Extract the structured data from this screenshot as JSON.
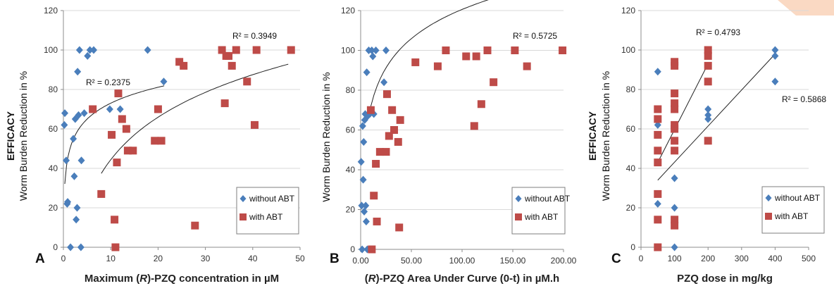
{
  "colors": {
    "without_abt": "#4A7EBB",
    "with_abt": "#BE4B48",
    "grid": "#D9D9D9",
    "axis": "#8C8C8C",
    "trend": "#222222",
    "corner_accent": "#FAD9C3"
  },
  "chart_data": [
    {
      "type": "scatter",
      "panel_label": "A",
      "xlabel": "Maximum (R)-PZQ concentration in µM",
      "ylabel_line1": "EFFICACY",
      "ylabel_line2": "Worm Burden Reduction in %",
      "xlim": [
        0,
        50
      ],
      "ylim": [
        0,
        120
      ],
      "xticks": [
        0,
        10,
        20,
        30,
        40,
        50
      ],
      "yticks": [
        0,
        20,
        40,
        60,
        80,
        100,
        120
      ],
      "xtick_labels": [
        "0",
        "10",
        "20",
        "30",
        "40",
        "50"
      ],
      "ytick_labels": [
        "0",
        "20",
        "40",
        "60",
        "80",
        "100",
        "120"
      ],
      "grid": "horizontal",
      "legend_position": "bottom-right",
      "series": [
        {
          "name": "without ABT",
          "marker": "diamond",
          "points": [
            [
              0.2,
              62
            ],
            [
              0.3,
              68
            ],
            [
              0.6,
              44
            ],
            [
              0.8,
              22
            ],
            [
              0.9,
              23
            ],
            [
              1.5,
              0
            ],
            [
              2.1,
              55
            ],
            [
              2.3,
              36
            ],
            [
              2.5,
              65
            ],
            [
              2.7,
              14
            ],
            [
              2.9,
              20
            ],
            [
              3.0,
              89
            ],
            [
              3.2,
              67
            ],
            [
              3.4,
              100
            ],
            [
              3.7,
              0
            ],
            [
              3.8,
              44
            ],
            [
              4.4,
              68
            ],
            [
              5.1,
              97
            ],
            [
              5.6,
              100
            ],
            [
              6.4,
              100
            ],
            [
              9.8,
              70
            ],
            [
              12.0,
              70
            ],
            [
              17.8,
              100
            ],
            [
              21.2,
              84
            ]
          ],
          "trendline": {
            "type": "log",
            "from": 0.3,
            "to": 21.3,
            "r2_text": "R² = 0.2375"
          }
        },
        {
          "name": "with ABT",
          "marker": "square",
          "points": [
            [
              6.2,
              70
            ],
            [
              8.0,
              27
            ],
            [
              10.2,
              57
            ],
            [
              10.8,
              14
            ],
            [
              11.0,
              0
            ],
            [
              11.3,
              43
            ],
            [
              11.6,
              78
            ],
            [
              12.4,
              65
            ],
            [
              13.3,
              60
            ],
            [
              13.6,
              49
            ],
            [
              14.7,
              49
            ],
            [
              19.3,
              54
            ],
            [
              20.0,
              70
            ],
            [
              20.7,
              54
            ],
            [
              24.5,
              94
            ],
            [
              25.4,
              92
            ],
            [
              27.8,
              11
            ],
            [
              33.5,
              100
            ],
            [
              34.1,
              73
            ],
            [
              34.4,
              97
            ],
            [
              34.9,
              97
            ],
            [
              35.6,
              92
            ],
            [
              36.5,
              100
            ],
            [
              38.8,
              84
            ],
            [
              40.4,
              62
            ],
            [
              40.8,
              100
            ],
            [
              48.1,
              100
            ]
          ],
          "trendline": {
            "type": "log",
            "from": 8.0,
            "to": 47.5,
            "r2_text": "R² = 0.3949"
          }
        }
      ]
    },
    {
      "type": "scatter",
      "panel_label": "B",
      "xlabel": "(R)-PZQ Area Under Curve (0-t) in µM.h",
      "ylabel_line1": "",
      "ylabel_line2": "Worm Burden Reduction in %",
      "xlim": [
        0,
        200
      ],
      "ylim": [
        0,
        120
      ],
      "xticks": [
        0,
        50,
        100,
        150,
        200
      ],
      "yticks": [
        0,
        20,
        40,
        60,
        80,
        100,
        120
      ],
      "xtick_labels": [
        "0.00",
        "50.00",
        "100.00",
        "150.00",
        "200.00"
      ],
      "ytick_labels": [
        "0",
        "20",
        "40",
        "60",
        "80",
        "100",
        "120"
      ],
      "grid": "horizontal",
      "legend_position": "bottom-right",
      "series": [
        {
          "name": "without ABT",
          "marker": "diamond",
          "points": [
            [
              0.5,
              44
            ],
            [
              1,
              22
            ],
            [
              1.5,
              0
            ],
            [
              2,
              62
            ],
            [
              2.5,
              35
            ],
            [
              3,
              54
            ],
            [
              3.5,
              19
            ],
            [
              4,
              65
            ],
            [
              4.5,
              68
            ],
            [
              5,
              22
            ],
            [
              5.5,
              14
            ],
            [
              6,
              89
            ],
            [
              6.5,
              0
            ],
            [
              7,
              67
            ],
            [
              8,
              100
            ],
            [
              9,
              68
            ],
            [
              10,
              70
            ],
            [
              11,
              100
            ],
            [
              12,
              97
            ],
            [
              13,
              68
            ],
            [
              15,
              100
            ],
            [
              23,
              84
            ],
            [
              25,
              100
            ]
          ],
          "trendline": {
            "type": "log",
            "from": 10,
            "to": 198,
            "r2_text": "R² = 0.5725"
          }
        },
        {
          "name": "with ABT",
          "marker": "square",
          "points": [
            [
              10,
              70
            ],
            [
              11,
              0
            ],
            [
              13,
              27
            ],
            [
              15,
              43
            ],
            [
              16,
              14
            ],
            [
              19,
              49
            ],
            [
              25,
              49
            ],
            [
              26,
              78
            ],
            [
              28,
              57
            ],
            [
              31,
              70
            ],
            [
              33,
              60
            ],
            [
              37,
              54
            ],
            [
              38,
              11
            ],
            [
              39,
              65
            ],
            [
              54,
              94
            ],
            [
              76,
              92
            ],
            [
              84,
              100
            ],
            [
              104,
              97
            ],
            [
              112,
              62
            ],
            [
              114,
              97
            ],
            [
              119,
              73
            ],
            [
              125,
              100
            ],
            [
              131,
              84
            ],
            [
              152,
              100
            ],
            [
              164,
              92
            ],
            [
              199,
              100
            ]
          ],
          "trendline": null
        }
      ]
    },
    {
      "type": "scatter",
      "panel_label": "C",
      "xlabel": "PZQ dose in mg/kg",
      "ylabel_line1": "EFFICACY",
      "ylabel_line2": "Worm Burden Reduction in %",
      "xlim": [
        0,
        500
      ],
      "ylim": [
        0,
        120
      ],
      "xticks": [
        0,
        100,
        200,
        300,
        400,
        500
      ],
      "yticks": [
        0,
        20,
        40,
        60,
        80,
        100,
        120
      ],
      "xtick_labels": [
        "0",
        "100",
        "200",
        "300",
        "400",
        "500"
      ],
      "ytick_labels": [
        "0",
        "20",
        "40",
        "60",
        "80",
        "100",
        "120"
      ],
      "grid": "horizontal",
      "legend_position": "bottom-right",
      "series": [
        {
          "name": "without ABT",
          "marker": "diamond",
          "points": [
            [
              50,
              89
            ],
            [
              50,
              62
            ],
            [
              50,
              22
            ],
            [
              100,
              35
            ],
            [
              100,
              20
            ],
            [
              100,
              14
            ],
            [
              100,
              0
            ],
            [
              200,
              70
            ],
            [
              200,
              67
            ],
            [
              200,
              65
            ],
            [
              400,
              100
            ],
            [
              400,
              97
            ],
            [
              400,
              84
            ]
          ],
          "trendline": {
            "type": "linear",
            "from": 50,
            "to": 400,
            "y_from": 34,
            "y_to": 98,
            "r2_text": "R² = 0.5868"
          }
        },
        {
          "name": "with ABT",
          "marker": "square",
          "points": [
            [
              50,
              70
            ],
            [
              50,
              65
            ],
            [
              50,
              57
            ],
            [
              50,
              49
            ],
            [
              50,
              43
            ],
            [
              50,
              27
            ],
            [
              50,
              14
            ],
            [
              50,
              0
            ],
            [
              100,
              94
            ],
            [
              100,
              92
            ],
            [
              100,
              78
            ],
            [
              100,
              73
            ],
            [
              100,
              70
            ],
            [
              100,
              62
            ],
            [
              100,
              60
            ],
            [
              100,
              54
            ],
            [
              100,
              49
            ],
            [
              100,
              14
            ],
            [
              100,
              11
            ],
            [
              200,
              100
            ],
            [
              200,
              97
            ],
            [
              200,
              92
            ],
            [
              200,
              84
            ],
            [
              200,
              54
            ]
          ],
          "trendline": {
            "type": "linear",
            "from": 50,
            "to": 200,
            "y_from": 43,
            "y_to": 93,
            "r2_text": "R² = 0.4793"
          }
        }
      ]
    }
  ]
}
